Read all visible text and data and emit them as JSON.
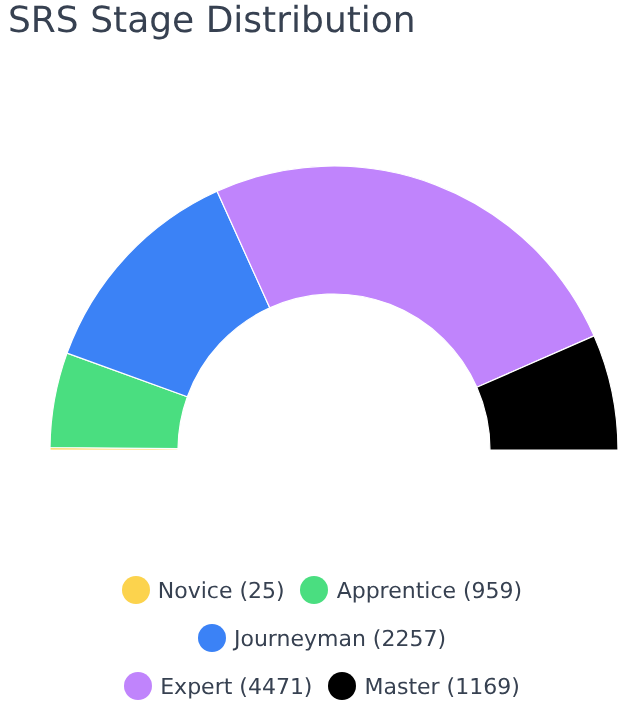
{
  "chart_data": {
    "type": "donut",
    "title": "SRS Stage Distribution",
    "categories": [
      "Novice (25)",
      "Apprentice (959)",
      "Journeyman (2257)",
      "Expert (4471)",
      "Master (1169)"
    ],
    "values": [
      25,
      959,
      2257,
      4471,
      1169
    ],
    "colors": [
      "#fcd34d",
      "#4ade80",
      "#3b82f6",
      "#c084fc",
      "#000000"
    ],
    "legend": "bottom"
  }
}
